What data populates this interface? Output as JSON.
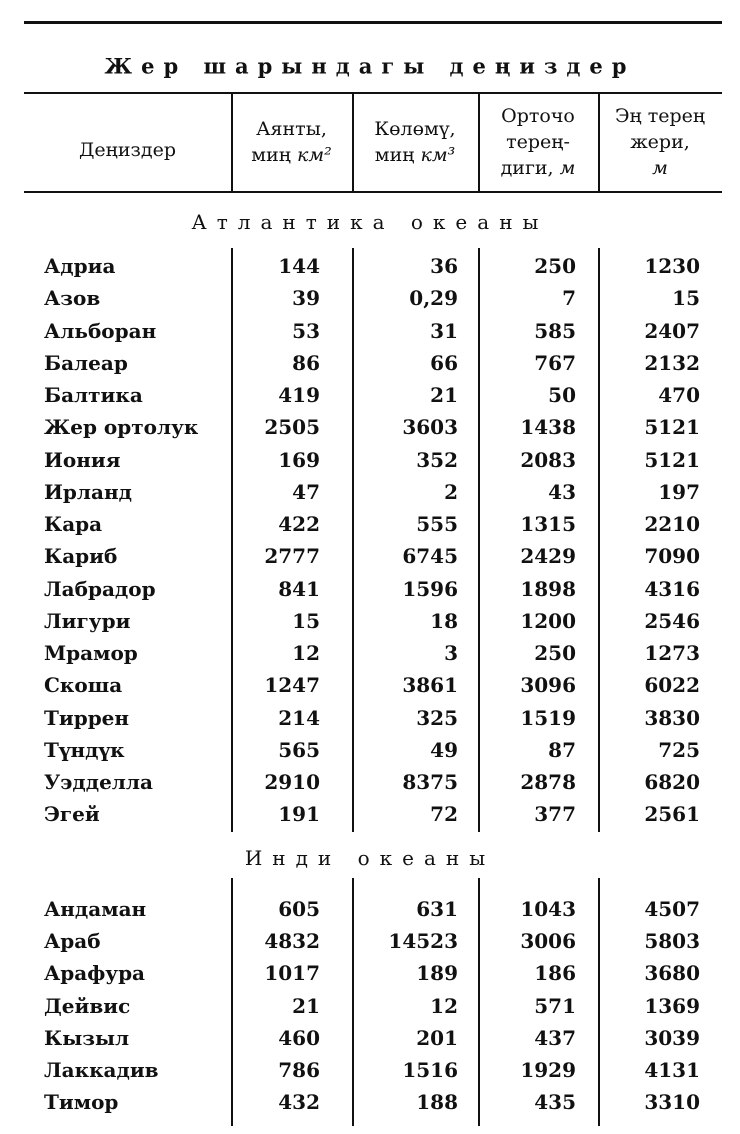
{
  "title": "Жер шарындагы деңиздер",
  "columns": [
    {
      "lines": [
        [
          "Деңиздер"
        ]
      ]
    },
    {
      "lines": [
        [
          "Аянты,"
        ],
        [
          "миң ",
          {
            "text": "км²",
            "italic": true
          }
        ]
      ]
    },
    {
      "lines": [
        [
          "Көлөмү,"
        ],
        [
          "миң ",
          {
            "text": "км³",
            "italic": true
          }
        ]
      ]
    },
    {
      "lines": [
        [
          "Орточо"
        ],
        [
          "терең-"
        ],
        [
          "диги, ",
          {
            "text": "м",
            "italic": true
          }
        ]
      ]
    },
    {
      "lines": [
        [
          "Эң терең"
        ],
        [
          "жери,"
        ],
        [
          {
            "text": "м",
            "italic": true
          }
        ]
      ]
    }
  ],
  "sections": [
    {
      "title": "Атлантика океаны",
      "rows": [
        [
          "Адриа",
          "144",
          "36",
          "250",
          "1230"
        ],
        [
          "Азов",
          "39",
          "0,29",
          "7",
          "15"
        ],
        [
          "Альборан",
          "53",
          "31",
          "585",
          "2407"
        ],
        [
          "Балеар",
          "86",
          "66",
          "767",
          "2132"
        ],
        [
          "Балтика",
          "419",
          "21",
          "50",
          "470"
        ],
        [
          "Жер ортолук",
          "2505",
          "3603",
          "1438",
          "5121"
        ],
        [
          "Иония",
          "169",
          "352",
          "2083",
          "5121"
        ],
        [
          "Ирланд",
          "47",
          "2",
          "43",
          "197"
        ],
        [
          "Кара",
          "422",
          "555",
          "1315",
          "2210"
        ],
        [
          "Кариб",
          "2777",
          "6745",
          "2429",
          "7090"
        ],
        [
          "Лабрадор",
          "841",
          "1596",
          "1898",
          "4316"
        ],
        [
          "Лигури",
          "15",
          "18",
          "1200",
          "2546"
        ],
        [
          "Мрамор",
          "12",
          "3",
          "250",
          "1273"
        ],
        [
          "Скоша",
          "1247",
          "3861",
          "3096",
          "6022"
        ],
        [
          "Тиррен",
          "214",
          "325",
          "1519",
          "3830"
        ],
        [
          "Түндүк",
          "565",
          "49",
          "87",
          "725"
        ],
        [
          "Уэдделла",
          "2910",
          "8375",
          "2878",
          "6820"
        ],
        [
          "Эгей",
          "191",
          "72",
          "377",
          "2561"
        ]
      ]
    },
    {
      "title": "Инди океаны",
      "rows": [
        [
          "Андаман",
          "605",
          "631",
          "1043",
          "4507"
        ],
        [
          "Араб",
          "4832",
          "14523",
          "3006",
          "5803"
        ],
        [
          "Арафура",
          "1017",
          "189",
          "186",
          "3680"
        ],
        [
          "Дейвис",
          "21",
          "12",
          "571",
          "1369"
        ],
        [
          "Кызыл",
          "460",
          "201",
          "437",
          "3039"
        ],
        [
          "Лаккадив",
          "786",
          "1516",
          "1929",
          "4131"
        ],
        [
          "Тимор",
          "432",
          "188",
          "435",
          "3310"
        ]
      ]
    }
  ]
}
